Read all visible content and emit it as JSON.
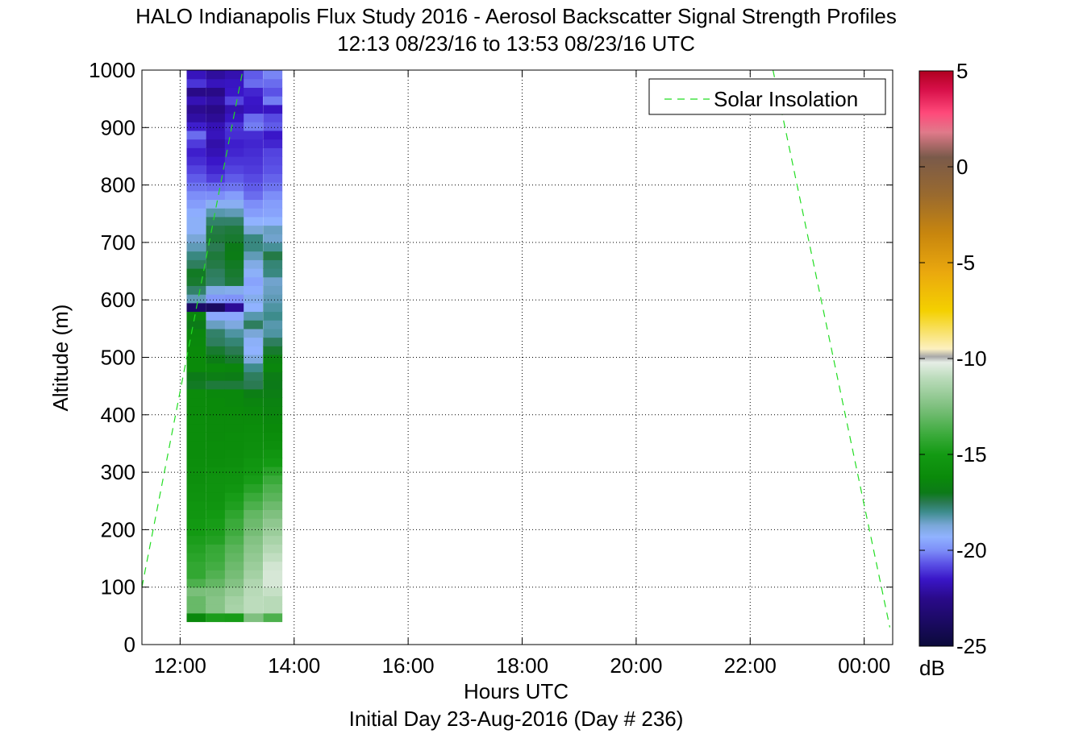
{
  "chart_data": {
    "type": "heatmap",
    "title": "HALO Indianapolis Flux Study 2016 - Aerosol Backscatter Signal Strength Profiles",
    "subtitle": "12:13 08/23/16 to 13:53 08/23/16  UTC",
    "xlabel": "Hours UTC",
    "xlabel2": "Initial Day 23-Aug-2016 (Day # 236)",
    "ylabel": "Altitude (m)",
    "xlim": [
      11.33,
      24.5
    ],
    "ylim": [
      0,
      1000
    ],
    "x_ticks": [
      12,
      14,
      16,
      18,
      20,
      22,
      24
    ],
    "x_tick_labels": [
      "12:00",
      "14:00",
      "16:00",
      "18:00",
      "20:00",
      "22:00",
      "00:00"
    ],
    "y_ticks": [
      0,
      100,
      200,
      300,
      400,
      500,
      600,
      700,
      800,
      900,
      1000
    ],
    "y_tick_labels": [
      "0",
      "100",
      "200",
      "300",
      "400",
      "500",
      "600",
      "700",
      "800",
      "900",
      "1000"
    ],
    "grid": true,
    "legend": {
      "position": "top-right",
      "entries": [
        "Solar Insolation"
      ]
    },
    "colorbar": {
      "label": "dB",
      "range": [
        -25,
        5
      ],
      "ticks": [
        -25,
        -20,
        -15,
        -10,
        -5,
        0,
        5
      ],
      "tick_labels": [
        "-25",
        "-20",
        "-15",
        "-10",
        "-5",
        "0",
        "5"
      ]
    },
    "heatmap": {
      "x_centers": [
        12.28,
        12.62,
        12.95,
        13.28,
        13.62
      ],
      "x_width": 0.33,
      "y_bin": 15,
      "y_start": 40,
      "y_end": 1000,
      "profiles": [
        [
          -16.3,
          -13.0,
          -13.0,
          -12.6,
          -13.6,
          -14.2,
          -14.2,
          -14.4,
          -14.6,
          -14.8,
          -15.0,
          -15.1,
          -15.3,
          -15.4,
          -15.6,
          -15.7,
          -15.8,
          -15.8,
          -15.9,
          -16.0,
          -16.0,
          -16.0,
          -16.0,
          -16.0,
          -16.1,
          -16.1,
          -16.1,
          -17.1,
          -17.0,
          -16.2,
          -16.2,
          -16.2,
          -16.3,
          -16.4,
          -17.0,
          -16.5,
          -23.6,
          -18.4,
          -17.7,
          -17.2,
          -17.1,
          -17.6,
          -17.9,
          -18.4,
          -18.7,
          -19.2,
          -19.2,
          -19.4,
          -19.7,
          -20.0,
          -20.3,
          -20.6,
          -20.9,
          -21.2,
          -21.4,
          -21.0,
          -20.4,
          -21.4,
          -22.1,
          -22.4,
          -21.8,
          -22.6,
          -21.1,
          -21.7,
          -21.9
        ],
        [
          -14.8,
          -12.3,
          -12.3,
          -12.5,
          -13.1,
          -13.5,
          -13.8,
          -14.0,
          -14.1,
          -14.6,
          -14.8,
          -14.9,
          -15.1,
          -15.4,
          -15.5,
          -15.5,
          -15.6,
          -15.7,
          -15.9,
          -16.0,
          -16.0,
          -16.1,
          -16.1,
          -16.1,
          -16.2,
          -16.2,
          -16.3,
          -17.3,
          -16.8,
          -16.3,
          -16.9,
          -17.2,
          -17.6,
          -17.7,
          -18.5,
          -19.5,
          -23.8,
          -19.8,
          -18.9,
          -17.7,
          -17.6,
          -17.4,
          -17.3,
          -17.5,
          -17.3,
          -17.4,
          -17.7,
          -18.3,
          -19.1,
          -20.0,
          -20.4,
          -21.0,
          -21.3,
          -21.5,
          -21.8,
          -22.0,
          -21.7,
          -21.8,
          -22.3,
          -22.6,
          -22.1,
          -22.6,
          -21.7,
          -22.2,
          -22.1
        ],
        [
          -14.9,
          -11.5,
          -11.6,
          -11.9,
          -12.4,
          -12.7,
          -12.9,
          -13.1,
          -13.3,
          -13.6,
          -13.9,
          -14.0,
          -14.3,
          -14.7,
          -14.9,
          -15.3,
          -15.5,
          -15.6,
          -15.8,
          -15.9,
          -16.0,
          -16.0,
          -16.1,
          -16.1,
          -16.2,
          -16.3,
          -16.3,
          -17.3,
          -16.9,
          -16.4,
          -17.2,
          -17.5,
          -17.8,
          -18.2,
          -18.8,
          -19.5,
          -22.3,
          -19.9,
          -19.0,
          -17.3,
          -17.2,
          -17.1,
          -16.9,
          -17.0,
          -17.2,
          -17.3,
          -17.7,
          -18.4,
          -19.1,
          -19.7,
          -20.3,
          -20.6,
          -20.9,
          -21.1,
          -21.3,
          -21.4,
          -21.2,
          -21.1,
          -21.6,
          -21.9,
          -20.9,
          -21.5,
          -21.6,
          -21.9,
          -22.2
        ],
        [
          -12.5,
          -11.0,
          -11.0,
          -11.1,
          -11.3,
          -11.6,
          -11.8,
          -12.0,
          -12.2,
          -12.4,
          -12.7,
          -12.9,
          -13.1,
          -13.6,
          -14.0,
          -14.5,
          -14.9,
          -15.2,
          -15.4,
          -15.7,
          -15.8,
          -15.9,
          -16.0,
          -16.1,
          -16.3,
          -16.5,
          -16.8,
          -17.5,
          -17.6,
          -18.0,
          -18.8,
          -19.3,
          -19.2,
          -18.7,
          -17.6,
          -18.3,
          -19.3,
          -19.0,
          -19.4,
          -19.6,
          -19.2,
          -18.9,
          -18.4,
          -17.9,
          -17.9,
          -18.7,
          -19.3,
          -19.7,
          -20.0,
          -20.4,
          -20.6,
          -20.8,
          -21.0,
          -21.1,
          -21.2,
          -21.3,
          -21.2,
          -20.2,
          -20.4,
          -21.6,
          -21.5,
          -21.3,
          -20.4,
          -20.6,
          -20.1
        ],
        [
          -13.6,
          -11.1,
          -11.1,
          -10.8,
          -10.5,
          -10.5,
          -10.6,
          -10.9,
          -11.2,
          -11.5,
          -11.8,
          -12.1,
          -12.5,
          -12.9,
          -13.3,
          -13.6,
          -14.0,
          -14.5,
          -15.0,
          -15.4,
          -15.8,
          -16.0,
          -16.2,
          -16.3,
          -16.5,
          -16.6,
          -16.8,
          -17.0,
          -16.9,
          -16.4,
          -16.6,
          -17.2,
          -17.6,
          -18.2,
          -18.3,
          -18.0,
          -18.2,
          -18.4,
          -18.5,
          -18.6,
          -17.9,
          -17.8,
          -17.4,
          -18.1,
          -18.6,
          -18.5,
          -19.3,
          -19.6,
          -19.7,
          -20.0,
          -20.3,
          -20.5,
          -20.7,
          -20.8,
          -20.9,
          -21.3,
          -21.5,
          -20.6,
          -20.8,
          -21.6,
          -20.2,
          -20.7,
          -20.4,
          -20.1,
          -19.9
        ]
      ]
    },
    "solar_insolation_segments": [
      {
        "x": [
          11.33,
          13.1
        ],
        "y": [
          100,
          1000
        ]
      },
      {
        "x": [
          22.4,
          24.45
        ],
        "y": [
          1000,
          30
        ]
      }
    ],
    "colors": {
      "solar_line": "#22dd22",
      "colormap": [
        "#0b0a3a",
        "#2a0a8a",
        "#3a16c8",
        "#5b52e6",
        "#7d8ef8",
        "#90b2ff",
        "#7aa7d8",
        "#3d8c8c",
        "#2a7a52",
        "#0c7a18",
        "#0a8a0a",
        "#139a13",
        "#3aaa3a",
        "#7fc07f",
        "#bcdcbc",
        "#e6eee6",
        "#a8a8a8",
        "#fcf0c0",
        "#f4d000",
        "#eaa80e",
        "#c8860e",
        "#9a6a2e",
        "#7a5a4a",
        "#e07a8a",
        "#ff4a7a",
        "#d8104a",
        "#b00020"
      ],
      "colormap_stops": [
        -25,
        -22.5,
        -21.5,
        -20.7,
        -20,
        -19.3,
        -18.7,
        -18,
        -17.5,
        -17,
        -16.2,
        -15,
        -14,
        -12.5,
        -11,
        -10.2,
        -9.9,
        -9.5,
        -7.5,
        -5.5,
        -3.5,
        -1.5,
        0.5,
        1.8,
        2.8,
        4,
        5
      ]
    }
  }
}
